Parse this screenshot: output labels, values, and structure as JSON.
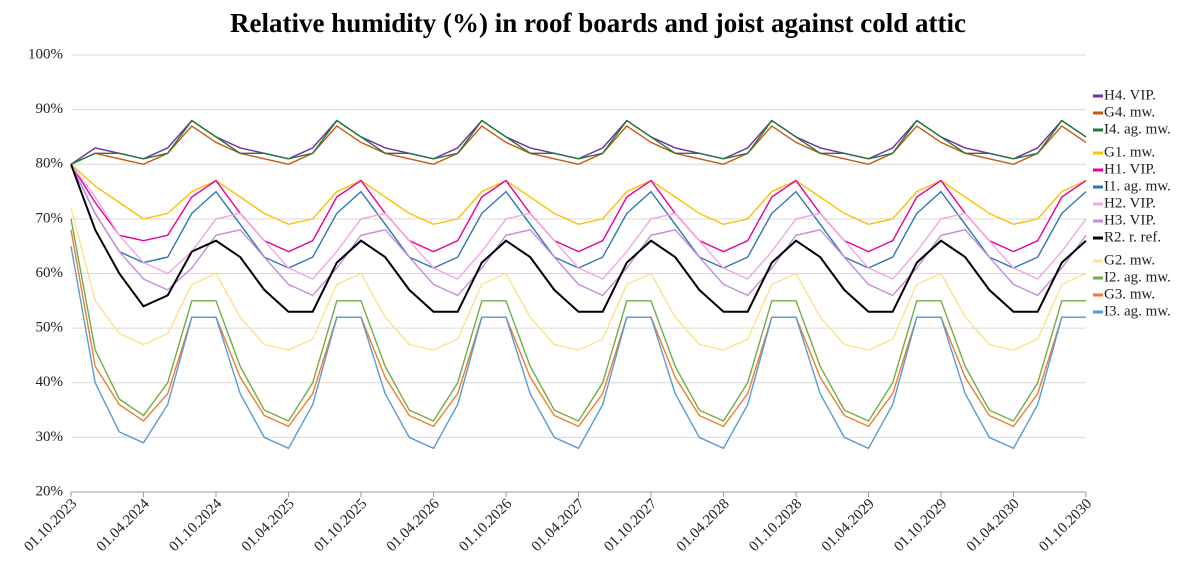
{
  "chart_data": {
    "type": "line",
    "title": "Relative humidity (%) in roof boards and joist against cold attic",
    "x": [
      "01.10.2023",
      "01.12.2023",
      "01.02.2024",
      "01.04.2024",
      "01.06.2024",
      "01.08.2024",
      "01.10.2024",
      "01.12.2024",
      "01.02.2025",
      "01.04.2025",
      "01.06.2025",
      "01.08.2025",
      "01.10.2025",
      "01.12.2025",
      "01.02.2026",
      "01.04.2026",
      "01.06.2026",
      "01.08.2026",
      "01.10.2026",
      "01.12.2026",
      "01.02.2027",
      "01.04.2027",
      "01.06.2027",
      "01.08.2027",
      "01.10.2027",
      "01.12.2027",
      "01.02.2028",
      "01.04.2028",
      "01.06.2028",
      "01.08.2028",
      "01.10.2028",
      "01.12.2028",
      "01.02.2029",
      "01.04.2029",
      "01.06.2029",
      "01.08.2029",
      "01.10.2029",
      "01.12.2029",
      "01.02.2030",
      "01.04.2030",
      "01.06.2030",
      "01.08.2030",
      "01.10.2030"
    ],
    "ylim": [
      20,
      100
    ],
    "yticks": [
      {
        "value": 20,
        "label": "20%"
      },
      {
        "value": 30,
        "label": "30%"
      },
      {
        "value": 40,
        "label": "40%"
      },
      {
        "value": 50,
        "label": "50%"
      },
      {
        "value": 60,
        "label": "60%"
      },
      {
        "value": 70,
        "label": "70%"
      },
      {
        "value": 80,
        "label": "80%"
      },
      {
        "value": 90,
        "label": "90%"
      },
      {
        "value": 100,
        "label": "100%"
      }
    ],
    "grid": true,
    "legend": "right",
    "series": [
      {
        "name": "H4. VIP.",
        "color": "#7030a0",
        "values": [
          80,
          83,
          82,
          81,
          83,
          88,
          85,
          83,
          82,
          81,
          83,
          88,
          85,
          83,
          82,
          81,
          83,
          88,
          85,
          83,
          82,
          81,
          83,
          88,
          85,
          83,
          82,
          81,
          83,
          88,
          85,
          83,
          82,
          81,
          83,
          88,
          85,
          83,
          82,
          81,
          83,
          88,
          85
        ]
      },
      {
        "name": "G4. mw.",
        "color": "#c55a11",
        "values": [
          80,
          82,
          81,
          80,
          82,
          87,
          84,
          82,
          81,
          80,
          82,
          87,
          84,
          82,
          81,
          80,
          82,
          87,
          84,
          82,
          81,
          80,
          82,
          87,
          84,
          82,
          81,
          80,
          82,
          87,
          84,
          82,
          81,
          80,
          82,
          87,
          84,
          82,
          81,
          80,
          82,
          87,
          84
        ]
      },
      {
        "name": "I4. ag. mw.",
        "color": "#1e7b3a",
        "values": [
          80,
          82,
          82,
          81,
          82,
          88,
          85,
          82,
          82,
          81,
          82,
          88,
          85,
          82,
          82,
          81,
          82,
          88,
          85,
          82,
          82,
          81,
          82,
          88,
          85,
          82,
          82,
          81,
          82,
          88,
          85,
          82,
          82,
          81,
          82,
          88,
          85,
          82,
          82,
          81,
          82,
          88,
          85
        ]
      },
      {
        "name": "G1. mw.",
        "color": "#ffc000",
        "values": [
          80,
          76,
          73,
          70,
          71,
          75,
          77,
          74,
          71,
          69,
          70,
          75,
          77,
          74,
          71,
          69,
          70,
          75,
          77,
          74,
          71,
          69,
          70,
          75,
          77,
          74,
          71,
          69,
          70,
          75,
          77,
          74,
          71,
          69,
          70,
          75,
          77,
          74,
          71,
          69,
          70,
          75,
          77
        ]
      },
      {
        "name": "H1. VIP.",
        "color": "#e6009a",
        "values": [
          80,
          73,
          67,
          66,
          67,
          74,
          77,
          71,
          66,
          64,
          66,
          74,
          77,
          71,
          66,
          64,
          66,
          74,
          77,
          71,
          66,
          64,
          66,
          74,
          77,
          71,
          66,
          64,
          66,
          74,
          77,
          71,
          66,
          64,
          66,
          74,
          77,
          71,
          66,
          64,
          66,
          74,
          77
        ]
      },
      {
        "name": "I1. ag. mw.",
        "color": "#2e75b6",
        "values": [
          80,
          71,
          64,
          62,
          63,
          71,
          75,
          69,
          63,
          61,
          63,
          71,
          75,
          69,
          63,
          61,
          63,
          71,
          75,
          69,
          63,
          61,
          63,
          71,
          75,
          69,
          63,
          61,
          63,
          71,
          75,
          69,
          63,
          61,
          63,
          71,
          75,
          69,
          63,
          61,
          63,
          71,
          75
        ]
      },
      {
        "name": "H2. VIP.",
        "color": "#f4a6e0",
        "values": [
          80,
          74,
          67,
          62,
          60,
          64,
          70,
          71,
          66,
          61,
          59,
          64,
          70,
          71,
          66,
          61,
          59,
          64,
          70,
          71,
          66,
          61,
          59,
          64,
          70,
          71,
          66,
          61,
          59,
          64,
          70,
          71,
          66,
          61,
          59,
          64,
          70,
          71,
          66,
          61,
          59,
          64,
          70
        ]
      },
      {
        "name": "H3. VIP.",
        "color": "#c38fdc",
        "values": [
          80,
          71,
          64,
          59,
          57,
          61,
          67,
          68,
          63,
          58,
          56,
          61,
          67,
          68,
          63,
          58,
          56,
          61,
          67,
          68,
          63,
          58,
          56,
          61,
          67,
          68,
          63,
          58,
          56,
          61,
          67,
          68,
          63,
          58,
          56,
          61,
          67,
          68,
          63,
          58,
          56,
          61,
          67
        ]
      },
      {
        "name": "R2. r. ref.",
        "color": "#000000",
        "values": [
          80,
          68,
          60,
          54,
          56,
          64,
          66,
          63,
          57,
          53,
          53,
          62,
          66,
          63,
          57,
          53,
          53,
          62,
          66,
          63,
          57,
          53,
          53,
          62,
          66,
          63,
          57,
          53,
          53,
          62,
          66,
          63,
          57,
          53,
          53,
          62,
          66,
          63,
          57,
          53,
          53,
          62,
          66
        ]
      },
      {
        "name": "G2. mw.",
        "color": "#ffe08a",
        "values": [
          72,
          55,
          49,
          47,
          49,
          58,
          60,
          52,
          47,
          46,
          48,
          58,
          60,
          52,
          47,
          46,
          48,
          58,
          60,
          52,
          47,
          46,
          48,
          58,
          60,
          52,
          47,
          46,
          48,
          58,
          60,
          52,
          47,
          46,
          48,
          58,
          60,
          52,
          47,
          46,
          48,
          58,
          60
        ]
      },
      {
        "name": "I2. ag. mw.",
        "color": "#70ad47",
        "values": [
          70,
          46,
          37,
          34,
          40,
          55,
          55,
          43,
          35,
          33,
          40,
          55,
          55,
          43,
          35,
          33,
          40,
          55,
          55,
          43,
          35,
          33,
          40,
          55,
          55,
          43,
          35,
          33,
          40,
          55,
          55,
          43,
          35,
          33,
          40,
          55,
          55,
          43,
          35,
          33,
          40,
          55,
          55
        ]
      },
      {
        "name": "G3. mw.",
        "color": "#ed7d31",
        "values": [
          68,
          43,
          36,
          33,
          38,
          52,
          52,
          41,
          34,
          32,
          38,
          52,
          52,
          41,
          34,
          32,
          38,
          52,
          52,
          41,
          34,
          32,
          38,
          52,
          52,
          41,
          34,
          32,
          38,
          52,
          52,
          41,
          34,
          32,
          38,
          52,
          52,
          41,
          34,
          32,
          38,
          52,
          52
        ]
      },
      {
        "name": "I3. ag. mw.",
        "color": "#5b9bd5",
        "values": [
          65,
          40,
          31,
          29,
          36,
          52,
          52,
          38,
          30,
          28,
          36,
          52,
          52,
          38,
          30,
          28,
          36,
          52,
          52,
          38,
          30,
          28,
          36,
          52,
          52,
          38,
          30,
          28,
          36,
          52,
          52,
          38,
          30,
          28,
          36,
          52,
          52,
          38,
          30,
          28,
          36,
          52,
          52
        ]
      }
    ]
  }
}
